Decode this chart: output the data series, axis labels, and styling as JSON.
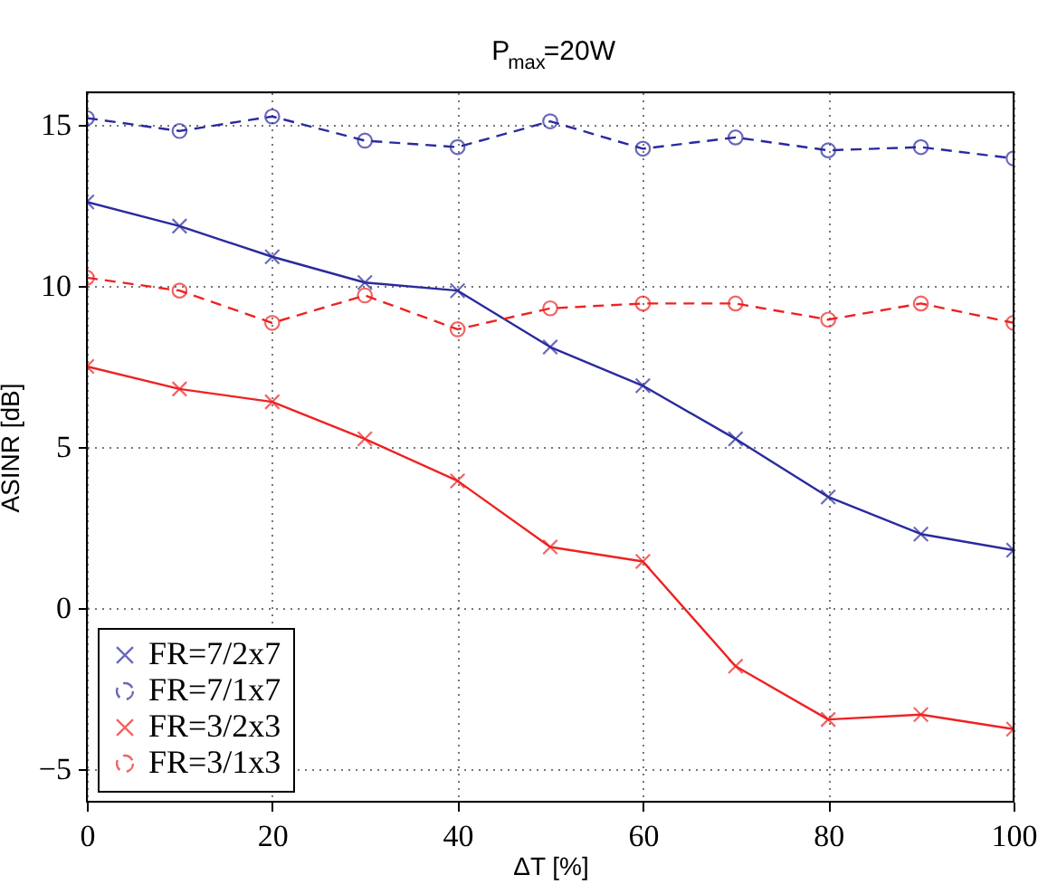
{
  "chart_data": {
    "type": "line",
    "title": "P$_{max}$=20W",
    "xlabel": "ΔT [%]",
    "ylabel": "ASINR [dB]",
    "x": [
      0,
      10,
      20,
      30,
      40,
      50,
      60,
      70,
      80,
      90,
      100
    ],
    "xlim": [
      0,
      100
    ],
    "xticks": [
      0,
      20,
      40,
      60,
      80,
      100
    ],
    "ylim": [
      -6,
      16
    ],
    "yticks": [
      -5,
      0,
      5,
      10,
      15
    ],
    "grid": true,
    "legend": "bottom left",
    "series": [
      {
        "name": "FR=7/2x7",
        "color": "#2a2a9e",
        "marker": "cross",
        "line_style": "solid",
        "values": [
          12.6,
          11.85,
          10.9,
          10.1,
          9.85,
          8.1,
          6.9,
          5.25,
          3.45,
          2.3,
          1.8
        ]
      },
      {
        "name": "FR=7/1x7",
        "color": "#2a2a9e",
        "marker": "circle",
        "line_style": "dashed",
        "values": [
          15.2,
          14.8,
          15.25,
          14.5,
          14.3,
          15.1,
          14.25,
          14.6,
          14.2,
          14.3,
          13.95
        ]
      },
      {
        "name": "FR=3/2x3",
        "color": "#ee2222",
        "marker": "cross",
        "line_style": "solid",
        "values": [
          7.5,
          6.8,
          6.4,
          5.25,
          3.95,
          1.9,
          1.45,
          -1.8,
          -3.45,
          -3.3,
          -3.75
        ]
      },
      {
        "name": "FR=3/1x3",
        "color": "#ee2222",
        "marker": "circle",
        "line_style": "dashed",
        "values": [
          10.25,
          9.85,
          8.85,
          9.7,
          8.65,
          9.3,
          9.45,
          9.45,
          8.95,
          9.45,
          8.85
        ]
      }
    ]
  }
}
